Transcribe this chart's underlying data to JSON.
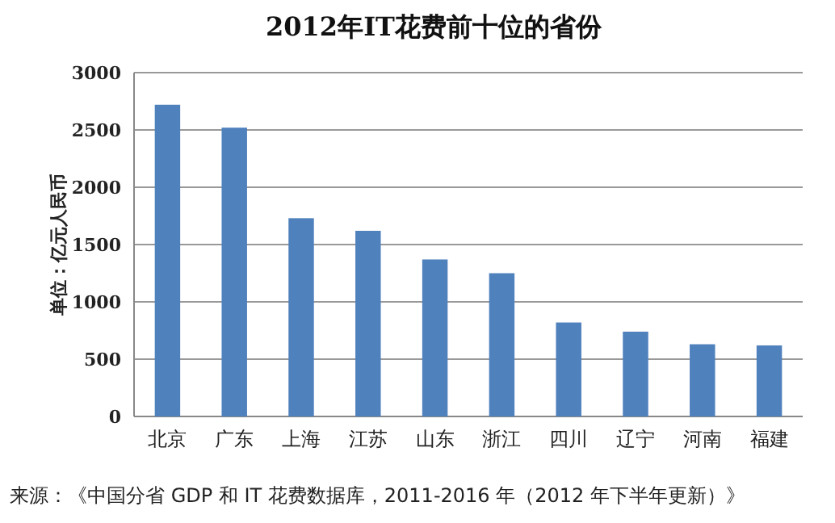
{
  "chart_data": {
    "type": "bar",
    "title": "2012年IT花费前十位的省份",
    "ylabel": "单位：亿元人民币",
    "categories": [
      "北京",
      "广东",
      "上海",
      "江苏",
      "山东",
      "浙江",
      "四川",
      "辽宁",
      "河南",
      "福建"
    ],
    "values": [
      2720,
      2520,
      1730,
      1620,
      1370,
      1250,
      820,
      740,
      630,
      620
    ],
    "color": "#4f81bd",
    "ylim": [
      0,
      3000
    ],
    "yticks": [
      0,
      500,
      1000,
      1500,
      2000,
      2500,
      3000
    ],
    "grid": "y",
    "annotations": [
      "来源：《中国分省 GDP 和 IT 花费数据库，2011-2016 年（2012 年下半年更新）》"
    ]
  }
}
